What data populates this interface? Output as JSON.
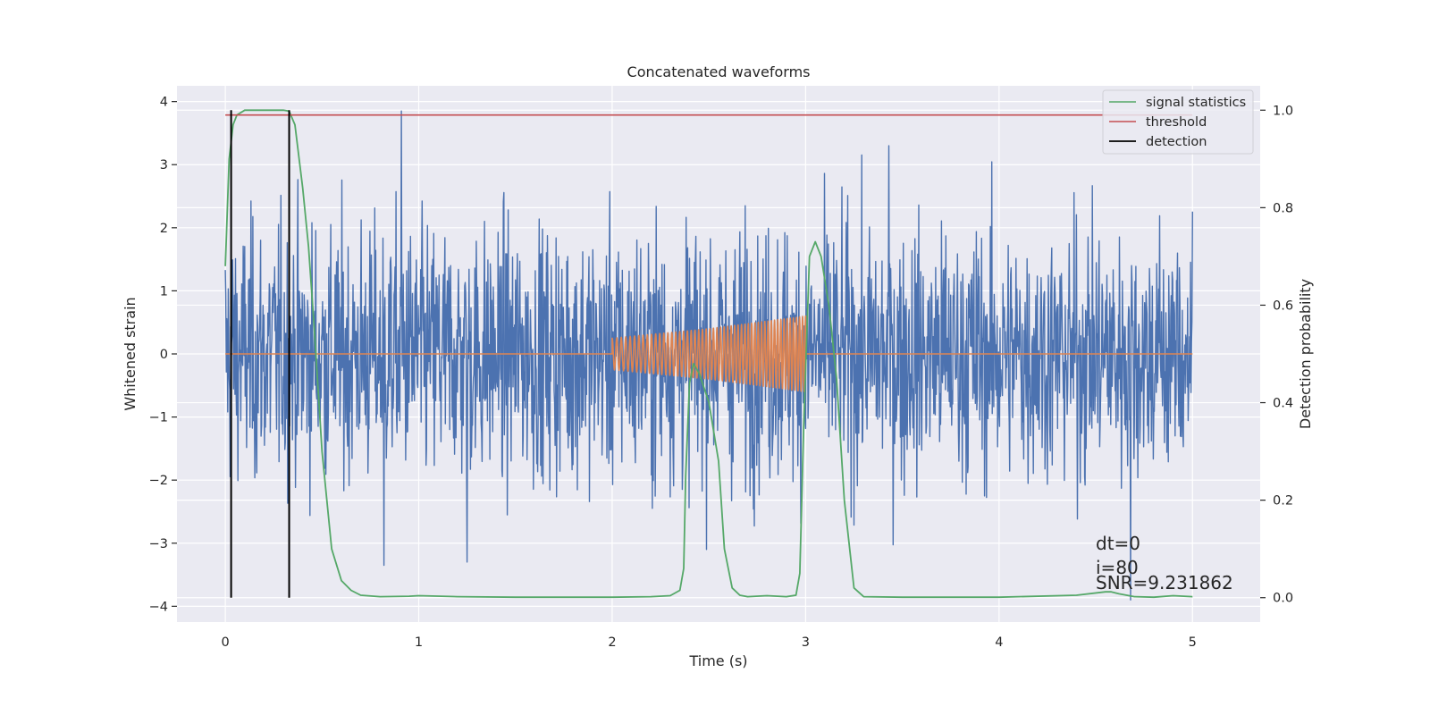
{
  "chart_data": {
    "type": "line",
    "title": "Concatenated waveforms",
    "xlabel": "Time (s)",
    "ylabel": "Whitened strain",
    "y2label": "Detection probability",
    "xlim": [
      -0.25,
      5.35
    ],
    "ylim": [
      -4.25,
      4.25
    ],
    "y2lim": [
      -0.05,
      1.05
    ],
    "xticks": [
      0,
      1,
      2,
      3,
      4,
      5
    ],
    "yticks": [
      -4,
      -3,
      -2,
      -1,
      0,
      1,
      2,
      3,
      4
    ],
    "y2ticks": [
      0.0,
      0.2,
      0.4,
      0.6,
      0.8,
      1.0
    ],
    "xtick_labels": [
      "0",
      "1",
      "2",
      "3",
      "4",
      "5"
    ],
    "ytick_labels": [
      "−4",
      "−3",
      "−2",
      "−1",
      "0",
      "1",
      "2",
      "3",
      "4"
    ],
    "y2tick_labels": [
      "0.0",
      "0.2",
      "0.4",
      "0.6",
      "0.8",
      "1.0"
    ],
    "grid": true,
    "legend_position": "top-right",
    "colors": {
      "background": "#eaeaf2",
      "grid": "#ffffff",
      "noise": "#4c72b0",
      "waveform": "#dd8452",
      "signal_statistics": "#55a868",
      "threshold": "#c44e52",
      "detection": "#000000"
    },
    "series": [
      {
        "name": "",
        "axis": "left",
        "kind": "noisy strain",
        "x_range": [
          0,
          5
        ],
        "std": 1.0,
        "peak_values": [
          [
            0.91,
            3.85
          ],
          [
            0.82,
            -3.35
          ],
          [
            3.43,
            3.3
          ],
          [
            4.68,
            -3.9
          ],
          [
            1.25,
            -3.3
          ]
        ]
      },
      {
        "name": "",
        "axis": "left",
        "kind": "injected chirp",
        "x": [
          0.0,
          2.0,
          2.0,
          2.5,
          3.0,
          3.0,
          5.0
        ],
        "amplitude": [
          0.0,
          0.0,
          0.25,
          0.4,
          0.6,
          0.0,
          0.0
        ],
        "frequency_hz": [
          0,
          0,
          42,
          53,
          64,
          0,
          0
        ]
      },
      {
        "name": "signal statistics",
        "axis": "right",
        "x": [
          0.0,
          0.02,
          0.04,
          0.06,
          0.1,
          0.2,
          0.3,
          0.33,
          0.36,
          0.4,
          0.43,
          0.46,
          0.5,
          0.55,
          0.6,
          0.65,
          0.7,
          0.8,
          0.95,
          1.0,
          1.2,
          1.5,
          2.0,
          2.2,
          2.3,
          2.35,
          2.37,
          2.38,
          2.4,
          2.42,
          2.45,
          2.5,
          2.55,
          2.58,
          2.62,
          2.66,
          2.7,
          2.8,
          2.9,
          2.95,
          2.97,
          2.99,
          3.02,
          3.05,
          3.08,
          3.12,
          3.16,
          3.2,
          3.25,
          3.3,
          3.5,
          4.0,
          4.4,
          4.55,
          4.58,
          4.62,
          4.7,
          4.8,
          4.9,
          5.0
        ],
        "values": [
          0.68,
          0.9,
          0.97,
          0.99,
          1.0,
          1.0,
          1.0,
          0.998,
          0.97,
          0.84,
          0.72,
          0.55,
          0.3,
          0.1,
          0.035,
          0.015,
          0.005,
          0.002,
          0.003,
          0.004,
          0.002,
          0.001,
          0.001,
          0.002,
          0.004,
          0.015,
          0.06,
          0.25,
          0.44,
          0.48,
          0.46,
          0.4,
          0.28,
          0.1,
          0.02,
          0.005,
          0.002,
          0.004,
          0.002,
          0.005,
          0.05,
          0.35,
          0.7,
          0.73,
          0.7,
          0.6,
          0.45,
          0.2,
          0.02,
          0.002,
          0.001,
          0.001,
          0.005,
          0.012,
          0.012,
          0.008,
          0.002,
          0.001,
          0.004,
          0.002
        ]
      },
      {
        "name": "threshold",
        "axis": "right",
        "x": [
          0,
          5
        ],
        "values": [
          0.99,
          0.99
        ]
      },
      {
        "name": "detection",
        "axis": "right",
        "kind": "vertical lines",
        "x": [
          0.03,
          0.33
        ],
        "y_range": [
          0.0,
          1.0
        ]
      }
    ],
    "annotations": [
      "dt=0",
      "i=80",
      "SNR=9.231862"
    ]
  }
}
